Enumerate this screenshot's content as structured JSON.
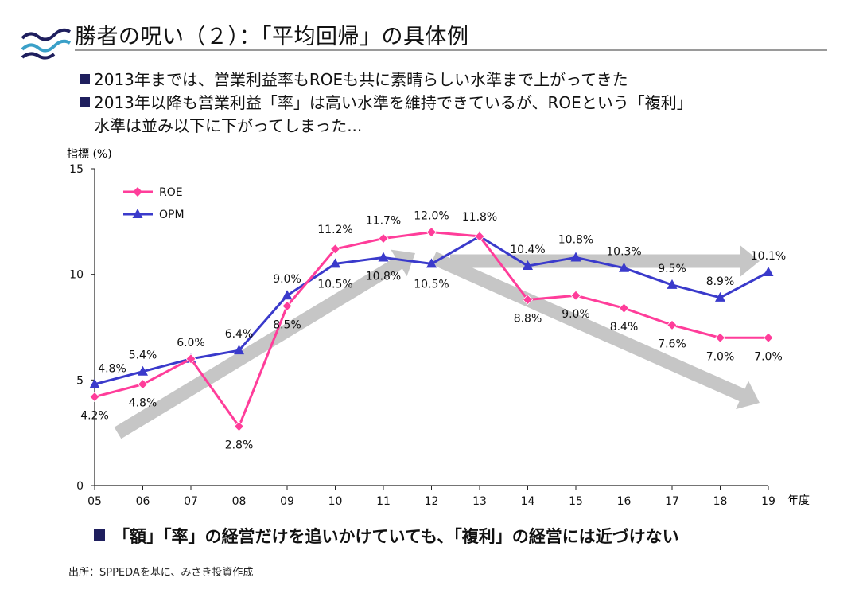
{
  "header": {
    "title": "勝者の呪い（２）：「平均回帰」の具体例"
  },
  "bullets": [
    {
      "lines": [
        "2013年までは、営業利益率もROEも共に素晴らしい水準まで上がってきた"
      ]
    },
    {
      "lines": [
        "2013年以降も営業利益「率」は高い水準を維持できているが、ROEという「複利」",
        "水準は並み以下に下がってしまった..."
      ]
    }
  ],
  "conclusion": "「額」「率」の経営だけを追いかけていても、「複利」の経営には近づけない",
  "source": "出所：SPPEDAを基に、みさき投資作成",
  "colors": {
    "roe": "#ff3d9a",
    "opm": "#3a3acb",
    "arrow": "#c6c6c6",
    "bullet": "#1f1f5e",
    "rule": "#9a9a9a"
  },
  "chart_data": {
    "type": "line",
    "ylabel": "指標 (%)",
    "xlabel": "年度",
    "ylim": [
      0,
      15
    ],
    "yticks": [
      "0",
      "5",
      "10",
      "15"
    ],
    "categories": [
      "05",
      "06",
      "07",
      "08",
      "09",
      "10",
      "11",
      "12",
      "13",
      "14",
      "15",
      "16",
      "17",
      "18",
      "19"
    ],
    "series": [
      {
        "name": "ROE",
        "values": [
          4.2,
          4.8,
          6.0,
          2.8,
          8.5,
          11.2,
          11.7,
          12.0,
          11.8,
          8.8,
          9.0,
          8.4,
          7.6,
          7.0,
          7.0
        ],
        "labels": [
          "4.2%",
          "4.8%",
          "",
          "2.8%",
          "8.5%",
          "11.2%",
          "11.7%",
          "12.0%",
          "",
          "8.8%",
          "9.0%",
          "8.4%",
          "7.6%",
          "7.0%",
          "7.0%"
        ]
      },
      {
        "name": "OPM",
        "values": [
          4.8,
          5.4,
          6.0,
          6.4,
          9.0,
          10.5,
          10.8,
          10.5,
          11.8,
          10.4,
          10.8,
          10.3,
          9.5,
          8.9,
          10.1
        ],
        "labels": [
          "4.8%",
          "5.4%",
          "6.0%",
          "6.4%",
          "9.0%",
          "10.5%",
          "10.8%",
          "10.5%",
          "11.8%",
          "10.4%",
          "10.8%",
          "10.3%",
          "9.5%",
          "8.9%",
          "10.1%"
        ]
      }
    ],
    "legend": [
      "ROE",
      "OPM"
    ]
  }
}
